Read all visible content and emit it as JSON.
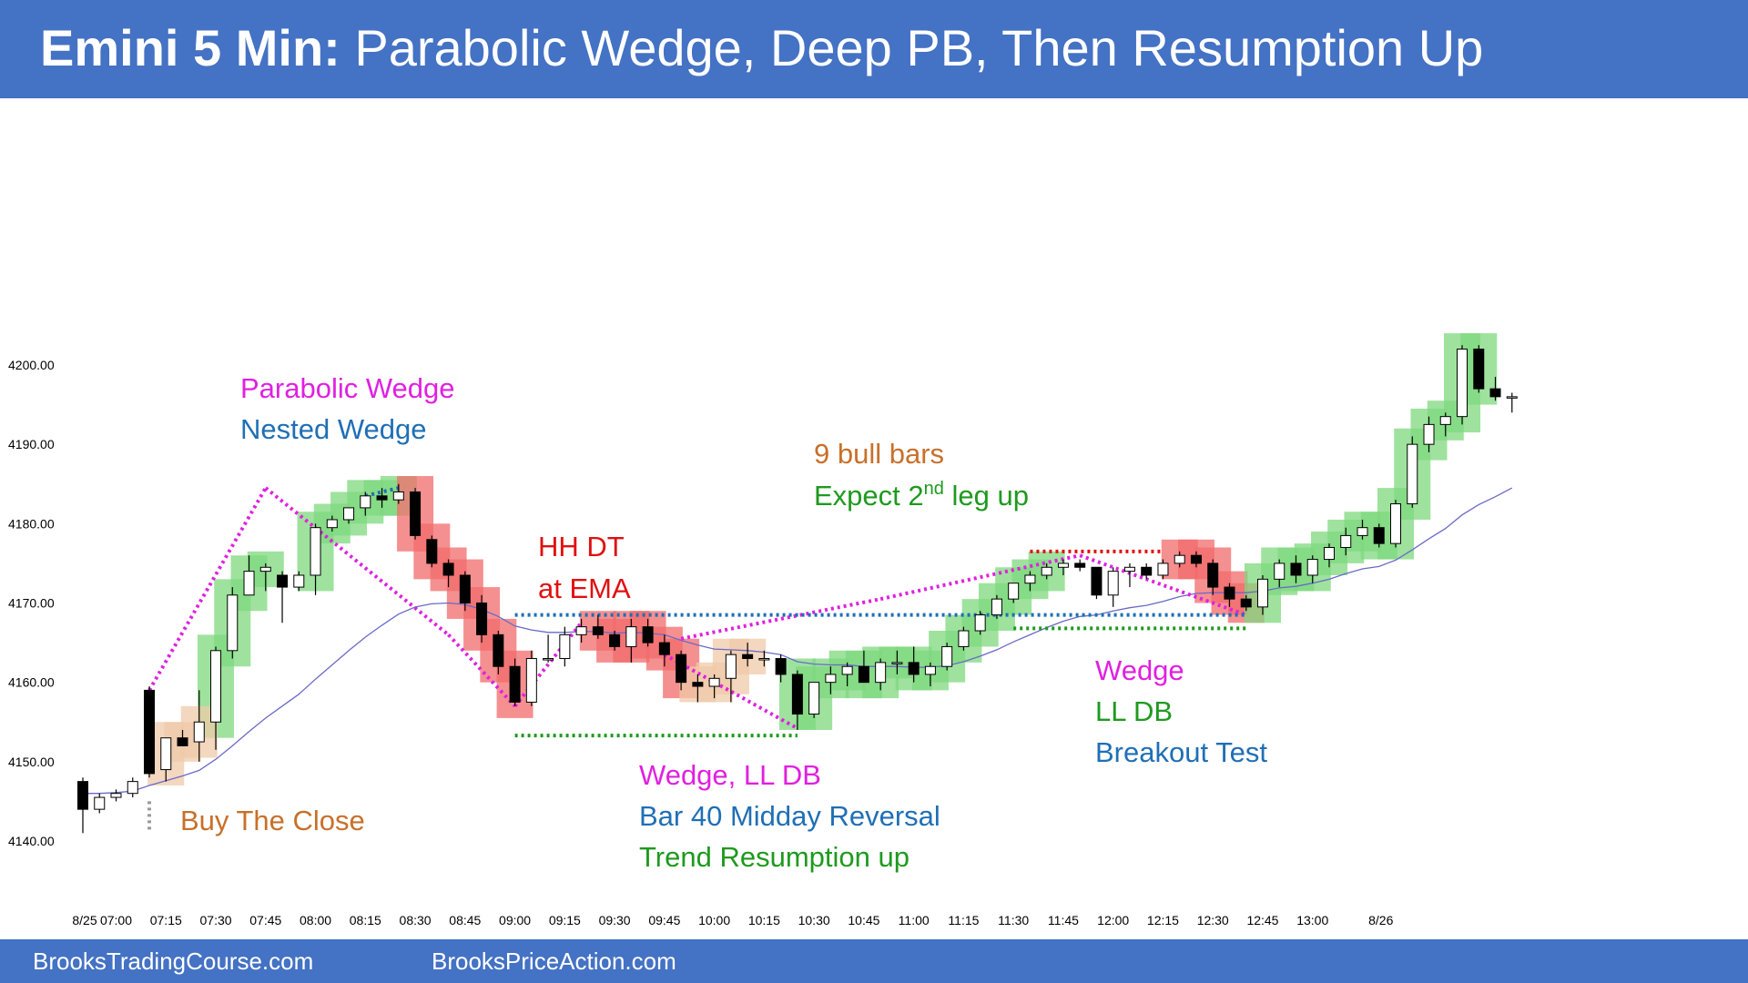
{
  "header": {
    "title_bold": "Emini 5 Min:",
    "title_rest": "Parabolic Wedge, Deep PB, Then Resumption Up"
  },
  "footer": {
    "site1": "BrooksTradingCourse.com",
    "site2": "BrooksPriceAction.com"
  },
  "colors": {
    "banner": "#4472c4",
    "bull_highlight": "#7dd87d",
    "bear_highlight": "#f26b6b",
    "tan_highlight": "#efc9a8",
    "ema": "#6a6ac8",
    "magenta": "#e020e0",
    "blue_annotation": "#1f6fb5",
    "green_annotation": "#1e9a1e",
    "red_annotation": "#e01010",
    "orange_annotation": "#c8702a"
  },
  "annotations": {
    "parabolic_wedge": "Parabolic Wedge",
    "nested_wedge": "Nested Wedge",
    "buy_the_close": "Buy The Close",
    "hh_dt": "HH DT",
    "at_ema": "at EMA",
    "bull_bars": "9 bull bars",
    "expect_prefix": "Expect 2",
    "expect_sup": "nd",
    "expect_suffix": " leg up",
    "wedge_ll_db": "Wedge, LL DB",
    "midday_reversal": "Bar 40 Midday Reversal",
    "trend_resumption": "Trend Resumption  up",
    "wedge": "Wedge",
    "ll_db": "LL DB",
    "breakout_test": "Breakout Test"
  },
  "chart_data": {
    "type": "candlestick",
    "title": "",
    "ylim": [
      4137,
      4205
    ],
    "y_ticks": [
      "4140.00",
      "4150.00",
      "4160.00",
      "4170.00",
      "4180.00",
      "4190.00",
      "4200.00"
    ],
    "x_ticks": [
      {
        "label": "8/25",
        "bar": 0
      },
      {
        "label": "07:00",
        "bar": 2
      },
      {
        "label": "07:15",
        "bar": 5
      },
      {
        "label": "07:30",
        "bar": 8
      },
      {
        "label": "07:45",
        "bar": 11
      },
      {
        "label": "08:00",
        "bar": 14
      },
      {
        "label": "08:15",
        "bar": 17
      },
      {
        "label": "08:30",
        "bar": 20
      },
      {
        "label": "08:45",
        "bar": 23
      },
      {
        "label": "09:00",
        "bar": 26
      },
      {
        "label": "09:15",
        "bar": 29
      },
      {
        "label": "09:30",
        "bar": 32
      },
      {
        "label": "09:45",
        "bar": 35
      },
      {
        "label": "10:00",
        "bar": 38
      },
      {
        "label": "10:15",
        "bar": 41
      },
      {
        "label": "10:30",
        "bar": 44
      },
      {
        "label": "10:45",
        "bar": 47
      },
      {
        "label": "11:00",
        "bar": 50
      },
      {
        "label": "11:15",
        "bar": 53
      },
      {
        "label": "11:30",
        "bar": 56
      },
      {
        "label": "11:45",
        "bar": 59
      },
      {
        "label": "12:00",
        "bar": 62
      },
      {
        "label": "12:15",
        "bar": 65
      },
      {
        "label": "12:30",
        "bar": 68
      },
      {
        "label": "12:45",
        "bar": 71
      },
      {
        "label": "13:00",
        "bar": 74
      },
      {
        "label": "8/26",
        "bar": 78
      }
    ],
    "bars": [
      [
        4147.5,
        4148.0,
        4141.0,
        4144.0
      ],
      [
        4144.0,
        4146.0,
        4143.5,
        4145.5
      ],
      [
        4145.5,
        4146.5,
        4145.0,
        4146.0
      ],
      [
        4146.0,
        4148.0,
        4145.5,
        4147.5
      ],
      [
        4159.0,
        4159.5,
        4148.0,
        4148.5
      ],
      [
        4149.0,
        4153.0,
        4147.5,
        4153.0
      ],
      [
        4153.0,
        4154.0,
        4152.0,
        4152.0
      ],
      [
        4152.5,
        4159.0,
        4150.0,
        4155.0
      ],
      [
        4155.0,
        4164.5,
        4151.5,
        4164.0
      ],
      [
        4164.0,
        4172.0,
        4163.0,
        4171.0
      ],
      [
        4171.0,
        4176.0,
        4171.0,
        4174.0
      ],
      [
        4174.0,
        4175.0,
        4171.5,
        4174.5
      ],
      [
        4173.5,
        4174.0,
        4167.5,
        4172.0
      ],
      [
        4172.0,
        4174.0,
        4171.5,
        4173.5
      ],
      [
        4173.5,
        4180.0,
        4171.0,
        4179.5
      ],
      [
        4179.5,
        4181.0,
        4179.0,
        4180.5
      ],
      [
        4180.5,
        4182.0,
        4180.0,
        4182.0
      ],
      [
        4182.0,
        4184.0,
        4181.0,
        4183.5
      ],
      [
        4183.5,
        4184.5,
        4182.0,
        4183.0
      ],
      [
        4183.0,
        4185.0,
        4182.5,
        4184.0
      ],
      [
        4184.0,
        4184.5,
        4178.0,
        4178.5
      ],
      [
        4178.0,
        4178.5,
        4174.5,
        4175.0
      ],
      [
        4175.0,
        4175.5,
        4172.0,
        4173.5
      ],
      [
        4173.5,
        4174.0,
        4169.0,
        4170.0
      ],
      [
        4170.0,
        4171.0,
        4165.0,
        4166.0
      ],
      [
        4166.0,
        4166.5,
        4161.0,
        4162.0
      ],
      [
        4162.0,
        4163.0,
        4157.0,
        4157.5
      ],
      [
        4157.5,
        4164.0,
        4157.0,
        4163.0
      ],
      [
        4163.0,
        4166.0,
        4162.5,
        4163.0
      ],
      [
        4163.0,
        4167.0,
        4162.0,
        4166.0
      ],
      [
        4166.0,
        4168.0,
        4165.0,
        4167.0
      ],
      [
        4167.0,
        4168.5,
        4165.5,
        4166.0
      ],
      [
        4166.0,
        4166.5,
        4164.0,
        4164.5
      ],
      [
        4164.5,
        4168.0,
        4162.5,
        4167.0
      ],
      [
        4167.0,
        4168.0,
        4164.5,
        4165.0
      ],
      [
        4165.0,
        4166.0,
        4162.0,
        4163.5
      ],
      [
        4163.5,
        4164.0,
        4159.0,
        4160.0
      ],
      [
        4160.0,
        4161.0,
        4157.5,
        4159.5
      ],
      [
        4159.5,
        4161.0,
        4158.0,
        4160.5
      ],
      [
        4160.5,
        4164.0,
        4157.5,
        4163.5
      ],
      [
        4163.5,
        4165.0,
        4162.0,
        4163.0
      ],
      [
        4163.0,
        4164.0,
        4162.0,
        4163.0
      ],
      [
        4163.0,
        4163.5,
        4160.0,
        4161.0
      ],
      [
        4161.0,
        4161.5,
        4154.0,
        4156.0
      ],
      [
        4156.0,
        4160.0,
        4155.5,
        4160.0
      ],
      [
        4160.0,
        4162.0,
        4158.5,
        4161.0
      ],
      [
        4161.0,
        4162.5,
        4159.5,
        4162.0
      ],
      [
        4162.0,
        4164.0,
        4160.0,
        4160.0
      ],
      [
        4160.0,
        4163.0,
        4159.0,
        4162.5
      ],
      [
        4162.5,
        4164.0,
        4161.0,
        4162.5
      ],
      [
        4162.5,
        4164.5,
        4160.0,
        4161.0
      ],
      [
        4161.0,
        4162.5,
        4159.5,
        4162.0
      ],
      [
        4162.0,
        4165.0,
        4161.5,
        4164.5
      ],
      [
        4164.5,
        4167.0,
        4164.0,
        4166.5
      ],
      [
        4166.5,
        4169.0,
        4166.0,
        4168.5
      ],
      [
        4168.5,
        4171.0,
        4168.0,
        4170.5
      ],
      [
        4170.5,
        4172.5,
        4170.0,
        4172.5
      ],
      [
        4172.5,
        4174.0,
        4171.5,
        4173.5
      ],
      [
        4173.5,
        4175.0,
        4173.0,
        4174.5
      ],
      [
        4174.5,
        4175.5,
        4173.5,
        4175.0
      ],
      [
        4175.0,
        4175.5,
        4174.0,
        4174.5
      ],
      [
        4174.5,
        4174.5,
        4170.5,
        4171.0
      ],
      [
        4171.0,
        4174.5,
        4169.5,
        4174.0
      ],
      [
        4174.0,
        4175.0,
        4172.0,
        4174.5
      ],
      [
        4174.5,
        4175.0,
        4173.0,
        4173.5
      ],
      [
        4173.5,
        4175.5,
        4173.0,
        4175.0
      ],
      [
        4175.0,
        4176.5,
        4174.5,
        4176.0
      ],
      [
        4176.0,
        4176.5,
        4174.5,
        4175.0
      ],
      [
        4175.0,
        4175.5,
        4171.0,
        4172.0
      ],
      [
        4172.0,
        4172.5,
        4169.5,
        4170.5
      ],
      [
        4170.5,
        4171.0,
        4169.0,
        4169.5
      ],
      [
        4169.5,
        4173.5,
        4168.5,
        4173.0
      ],
      [
        4173.0,
        4175.5,
        4172.0,
        4175.0
      ],
      [
        4175.0,
        4176.0,
        4172.5,
        4173.5
      ],
      [
        4173.5,
        4176.0,
        4172.5,
        4175.5
      ],
      [
        4175.5,
        4177.5,
        4174.5,
        4177.0
      ],
      [
        4177.0,
        4179.5,
        4176.0,
        4178.5
      ],
      [
        4178.5,
        4180.5,
        4178.0,
        4179.5
      ],
      [
        4179.5,
        4180.0,
        4177.0,
        4177.5
      ],
      [
        4177.5,
        4183.0,
        4177.0,
        4182.5
      ],
      [
        4182.5,
        4191.0,
        4182.0,
        4190.0
      ],
      [
        4190.0,
        4193.5,
        4189.0,
        4192.5
      ],
      [
        4192.5,
        4194.0,
        4191.0,
        4193.5
      ],
      [
        4193.5,
        4202.5,
        4192.5,
        4202.0
      ],
      [
        4202.0,
        4202.5,
        4196.5,
        4197.0
      ],
      [
        4197.0,
        4198.5,
        4195.5,
        4196.0
      ],
      [
        4196.0,
        4196.5,
        4194.0,
        4196.0
      ]
    ],
    "ema": [
      4146.0,
      4146.0,
      4146.1,
      4146.3,
      4147.0,
      4147.6,
      4148.2,
      4148.9,
      4150.3,
      4152.0,
      4153.8,
      4155.5,
      4157.0,
      4158.5,
      4160.4,
      4162.2,
      4164.0,
      4165.7,
      4167.2,
      4168.6,
      4169.5,
      4169.9,
      4170.0,
      4169.8,
      4169.2,
      4168.3,
      4167.1,
      4166.6,
      4166.3,
      4166.3,
      4166.4,
      4166.4,
      4166.2,
      4166.3,
      4166.2,
      4166.0,
      4165.3,
      4164.7,
      4164.2,
      4164.1,
      4164.0,
      4163.8,
      4163.5,
      4162.6,
      4162.3,
      4162.2,
      4162.2,
      4162.0,
      4162.0,
      4162.0,
      4161.9,
      4161.9,
      4162.1,
      4162.6,
      4163.3,
      4164.1,
      4165.1,
      4166.0,
      4166.9,
      4167.7,
      4168.3,
      4168.5,
      4169.0,
      4169.4,
      4169.7,
      4170.2,
      4170.8,
      4171.2,
      4171.3,
      4171.3,
      4171.3,
      4171.5,
      4171.9,
      4172.1,
      4172.5,
      4173.0,
      4173.7,
      4174.3,
      4174.6,
      4175.4,
      4176.7,
      4178.1,
      4179.4,
      4181.1,
      4182.4,
      4183.4,
      4184.5
    ]
  }
}
